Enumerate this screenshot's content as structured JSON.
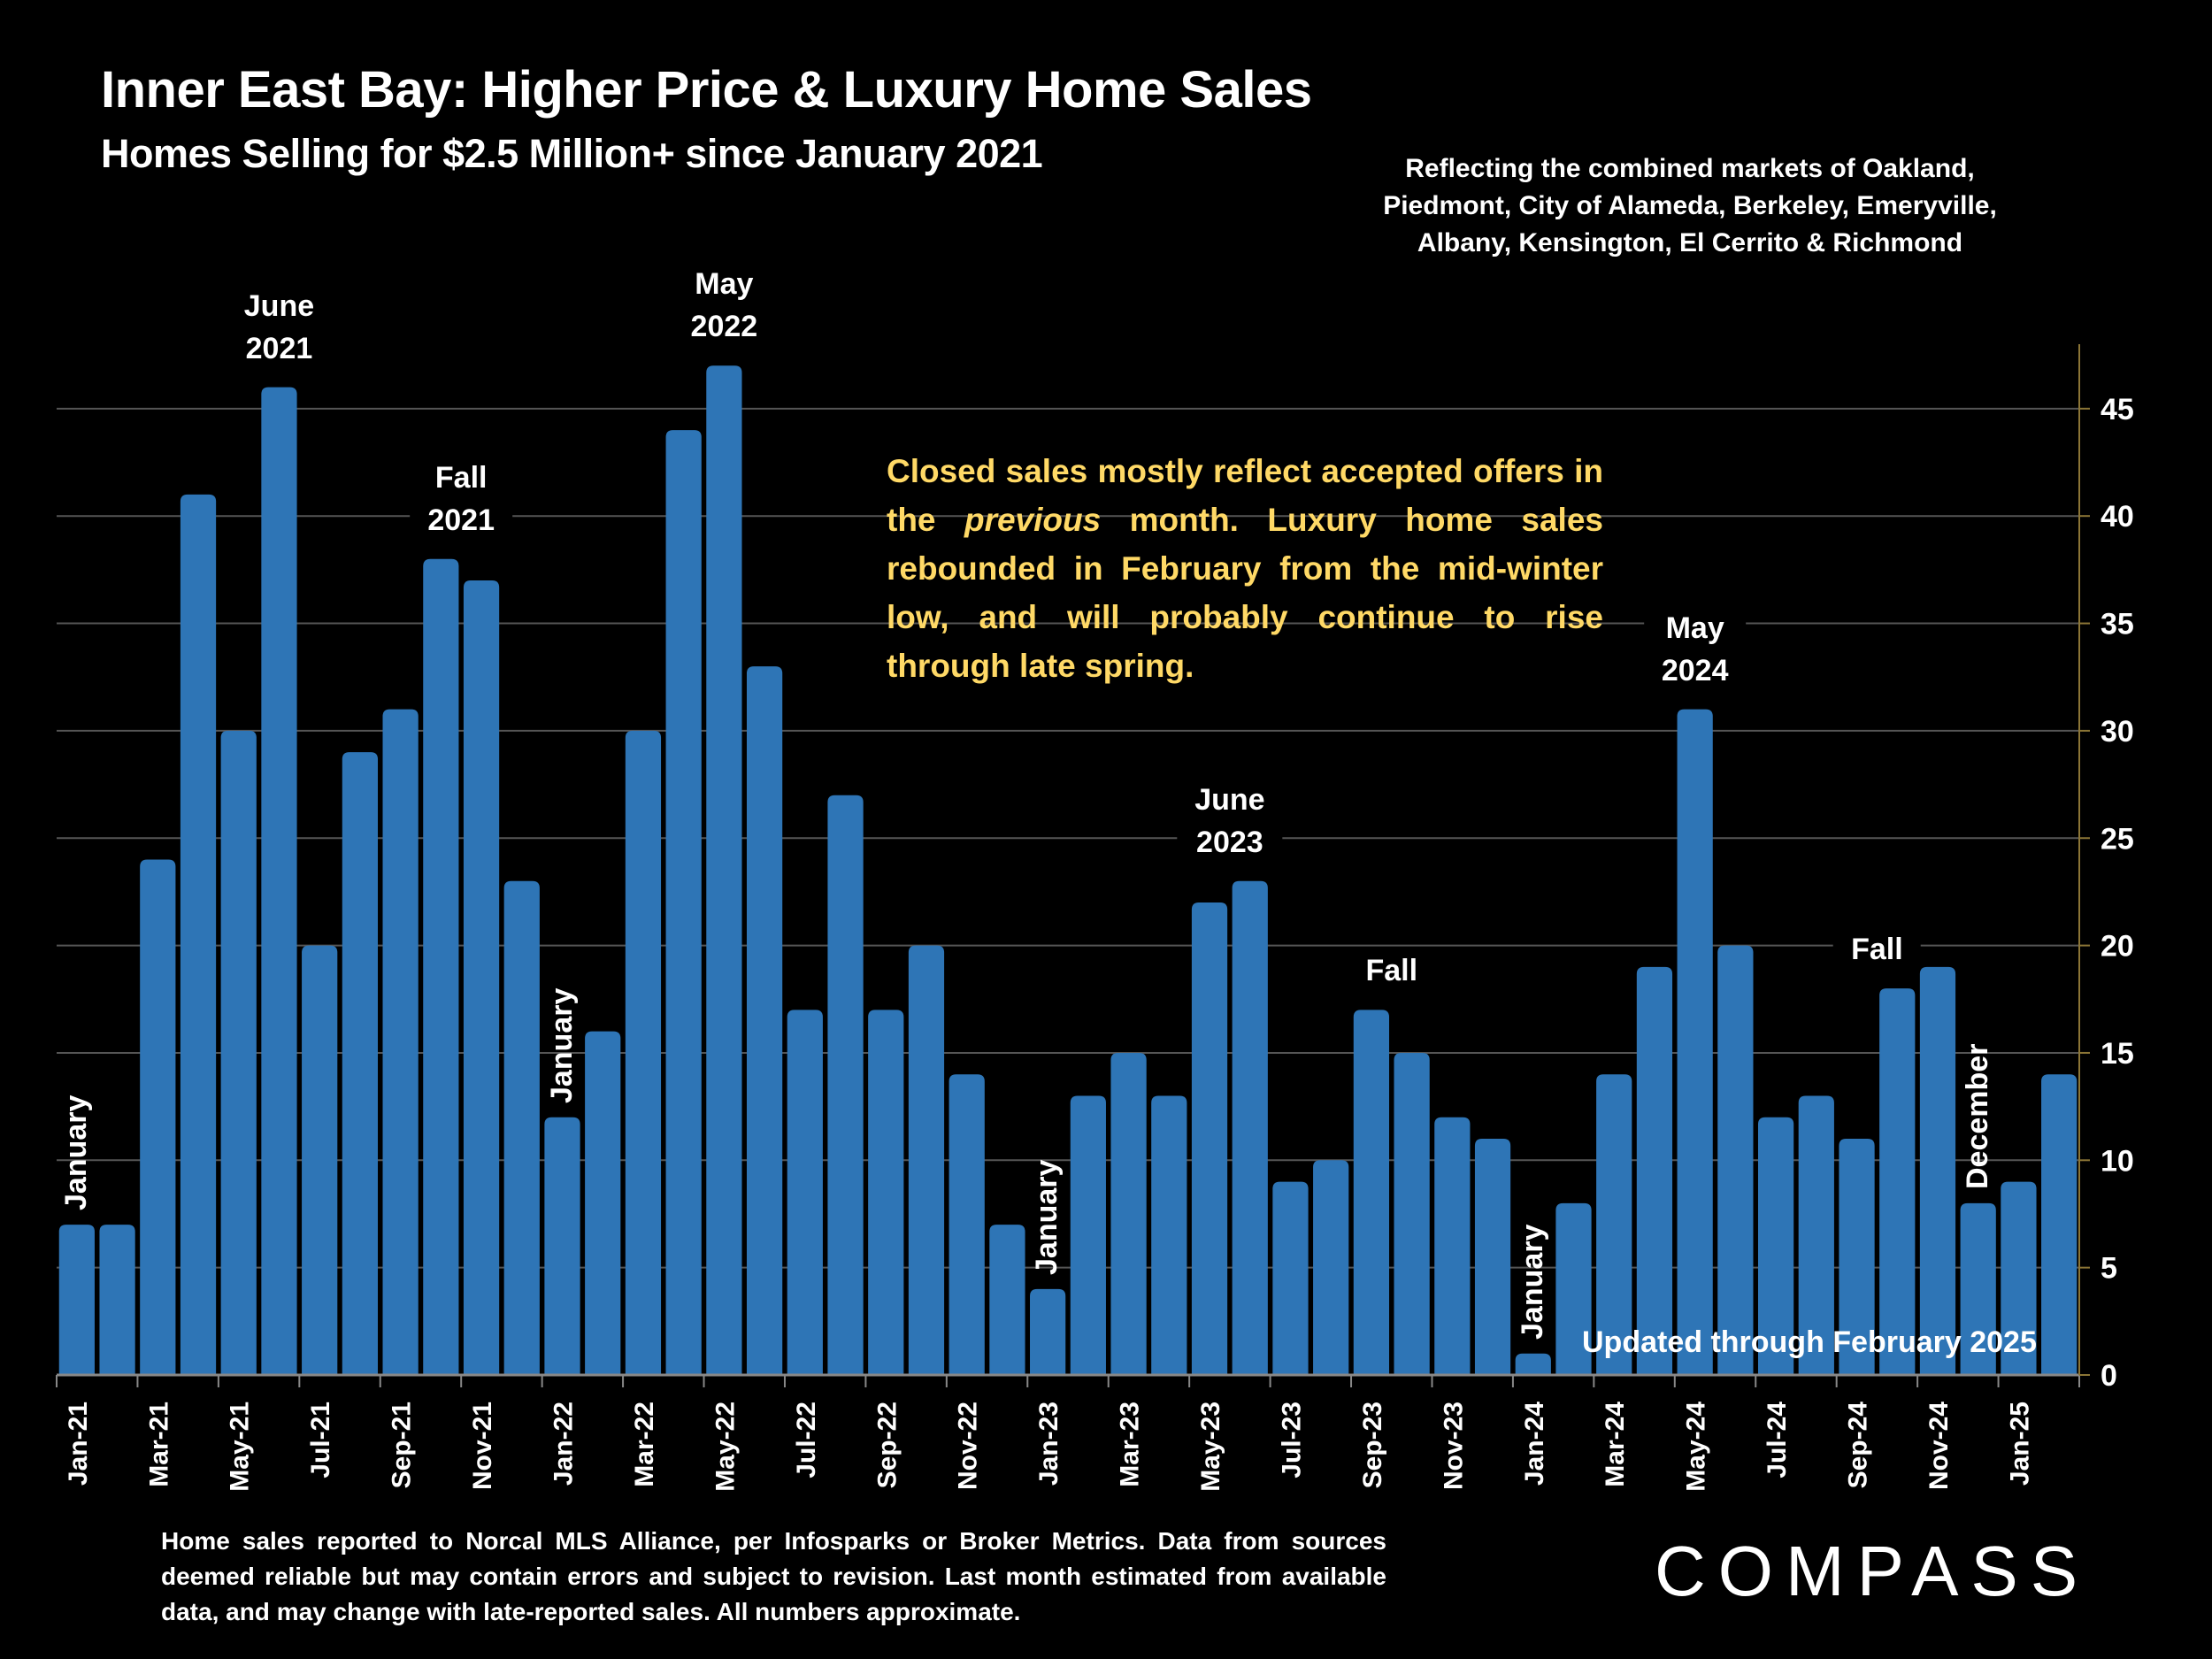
{
  "header": {
    "title": "Inner East Bay: Higher Price & Luxury Home Sales",
    "subtitle": "Homes Selling for $2.5 Million+ since January 2021",
    "markets_note": "Reflecting the combined markets of Oakland, Piedmont, City of Alameda, Berkeley, Emeryville, Albany, Kensington, El Cerrito & Richmond"
  },
  "commentary": {
    "part1": "Closed sales mostly reflect accepted offers in the ",
    "emphasis": "previous",
    "part2": " month. Luxury home sales rebounded in February from the mid-winter low, and will probably continue to rise through late spring."
  },
  "updated_note": "Updated through February 2025",
  "footer": "Home sales reported to Norcal MLS Alliance, per Infosparks or Broker Metrics. Data from sources deemed reliable but may contain errors and subject to revision.  Last month estimated from available data, and may change with late-reported sales. All numbers approximate.",
  "logo": "COMPASS",
  "colors": {
    "bar": "#2E75B6",
    "commentary": "#FFD966",
    "axis": "#8B7536",
    "grid": "#555555"
  },
  "chart_data": {
    "type": "bar",
    "title": "Inner East Bay: Higher Price & Luxury Home Sales",
    "subtitle": "Homes Selling for $2.5 Million+ since January 2021",
    "xlabel": "",
    "ylabel": "",
    "ylim": [
      0,
      48
    ],
    "yticks": [
      0,
      5,
      10,
      15,
      20,
      25,
      30,
      35,
      40,
      45
    ],
    "y_axis_side": "right",
    "grid": true,
    "categories": [
      "Jan-21",
      "Feb-21",
      "Mar-21",
      "Apr-21",
      "May-21",
      "Jun-21",
      "Jul-21",
      "Aug-21",
      "Sep-21",
      "Oct-21",
      "Nov-21",
      "Dec-21",
      "Jan-22",
      "Feb-22",
      "Mar-22",
      "Apr-22",
      "May-22",
      "Jun-22",
      "Jul-22",
      "Aug-22",
      "Sep-22",
      "Oct-22",
      "Nov-22",
      "Dec-22",
      "Jan-23",
      "Feb-23",
      "Mar-23",
      "Apr-23",
      "May-23",
      "Jun-23",
      "Jul-23",
      "Aug-23",
      "Sep-23",
      "Oct-23",
      "Nov-23",
      "Dec-23",
      "Jan-24",
      "Feb-24",
      "Mar-24",
      "Apr-24",
      "May-24",
      "Jun-24",
      "Jul-24",
      "Aug-24",
      "Sep-24",
      "Oct-24",
      "Nov-24",
      "Dec-24",
      "Jan-25",
      "Feb-25"
    ],
    "tick_labels": [
      "Jan-21",
      "Mar-21",
      "May-21",
      "Jul-21",
      "Sep-21",
      "Nov-21",
      "Jan-22",
      "Mar-22",
      "May-22",
      "Jul-22",
      "Sep-22",
      "Nov-22",
      "Jan-23",
      "Mar-23",
      "May-23",
      "Jul-23",
      "Sep-23",
      "Nov-23",
      "Jan-24",
      "Mar-24",
      "May-24",
      "Jul-24",
      "Sep-24",
      "Nov-24",
      "Jan-25"
    ],
    "values": [
      7,
      7,
      24,
      41,
      30,
      46,
      20,
      29,
      31,
      38,
      37,
      23,
      12,
      16,
      30,
      44,
      47,
      33,
      17,
      27,
      17,
      20,
      14,
      7,
      4,
      13,
      15,
      13,
      22,
      23,
      9,
      10,
      17,
      15,
      12,
      11,
      1,
      8,
      14,
      19,
      31,
      20,
      12,
      13,
      11,
      18,
      19,
      8,
      9,
      14
    ],
    "annotations": [
      {
        "text": [
          "June",
          "2021"
        ],
        "index": 5,
        "orientation": "horizontal"
      },
      {
        "text": [
          "Fall",
          "2021"
        ],
        "index": 9.5,
        "orientation": "horizontal"
      },
      {
        "text": [
          "May",
          "2022"
        ],
        "index": 16,
        "orientation": "horizontal"
      },
      {
        "text": [
          "June",
          "2023"
        ],
        "index": 28.5,
        "orientation": "horizontal"
      },
      {
        "text": [
          "Fall"
        ],
        "index": 32.5,
        "orientation": "horizontal"
      },
      {
        "text": [
          "May",
          "2024"
        ],
        "index": 40,
        "orientation": "horizontal"
      },
      {
        "text": [
          "Fall"
        ],
        "index": 44.5,
        "orientation": "horizontal"
      },
      {
        "text": [
          "January"
        ],
        "index": 0,
        "orientation": "vertical"
      },
      {
        "text": [
          "January"
        ],
        "index": 12,
        "orientation": "vertical"
      },
      {
        "text": [
          "January"
        ],
        "index": 24,
        "orientation": "vertical"
      },
      {
        "text": [
          "January"
        ],
        "index": 36,
        "orientation": "vertical"
      },
      {
        "text": [
          "December"
        ],
        "index": 47,
        "orientation": "vertical"
      }
    ]
  }
}
